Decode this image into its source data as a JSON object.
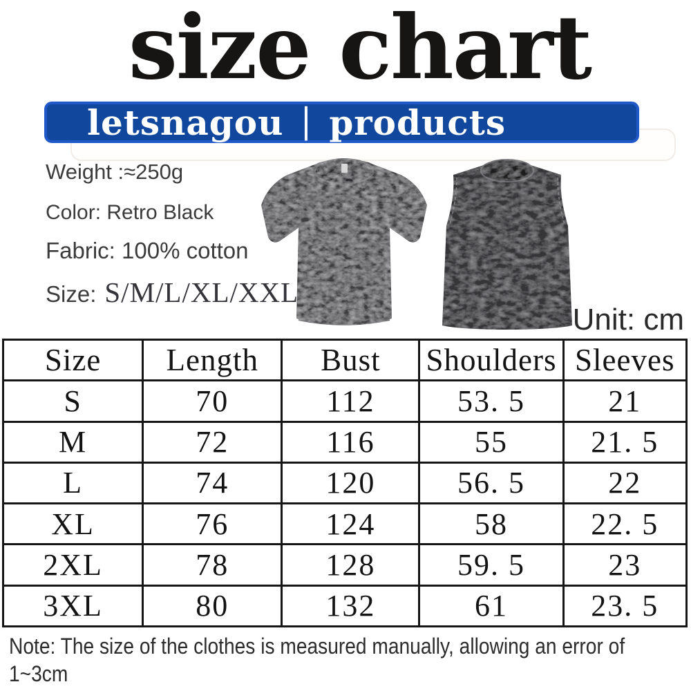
{
  "title": "size chart",
  "banner": {
    "brand": "letsnagou",
    "separator": "|",
    "label": "products",
    "bg_color": "#11489e",
    "border_color": "#2058c8",
    "text_color": "#ffffff"
  },
  "product_info": {
    "weight": "Weight :≈250g",
    "color": "Color: Retro Black",
    "fabric": "Fabric: 100% cotton",
    "size_label": "Size:",
    "size_values": "S/M/L/XL/XXL/3XL"
  },
  "photos": {
    "tshirt_alt": "washed retro black oversized short-sleeve t-shirt, front view",
    "tank_alt": "washed retro black sleeveless tank top, front view",
    "tshirt_color": "#3d3d40",
    "tank_color": "#353537"
  },
  "unit_label": "Unit: cm",
  "size_table": {
    "border_color": "#161616",
    "column_widths": [
      "20.2%",
      "20.4%",
      "20.2%",
      "21.1%",
      "18.1%"
    ],
    "headers": [
      "Size",
      "Length",
      "Bust",
      "Shoulders",
      "Sleeves"
    ],
    "rows": [
      [
        "S",
        "70",
        "112",
        "53. 5",
        "21"
      ],
      [
        "M",
        "72",
        "116",
        "55",
        "21. 5"
      ],
      [
        "L",
        "74",
        "120",
        "56. 5",
        "22"
      ],
      [
        "XL",
        "76",
        "124",
        "58",
        "22. 5"
      ],
      [
        "2XL",
        "78",
        "128",
        "59. 5",
        "23"
      ],
      [
        "3XL",
        "80",
        "132",
        "61",
        "23. 5"
      ]
    ]
  },
  "note": {
    "line1": "Note: The size of the clothes is measured manually, allowing an error of",
    "line2": "1~3cm"
  }
}
